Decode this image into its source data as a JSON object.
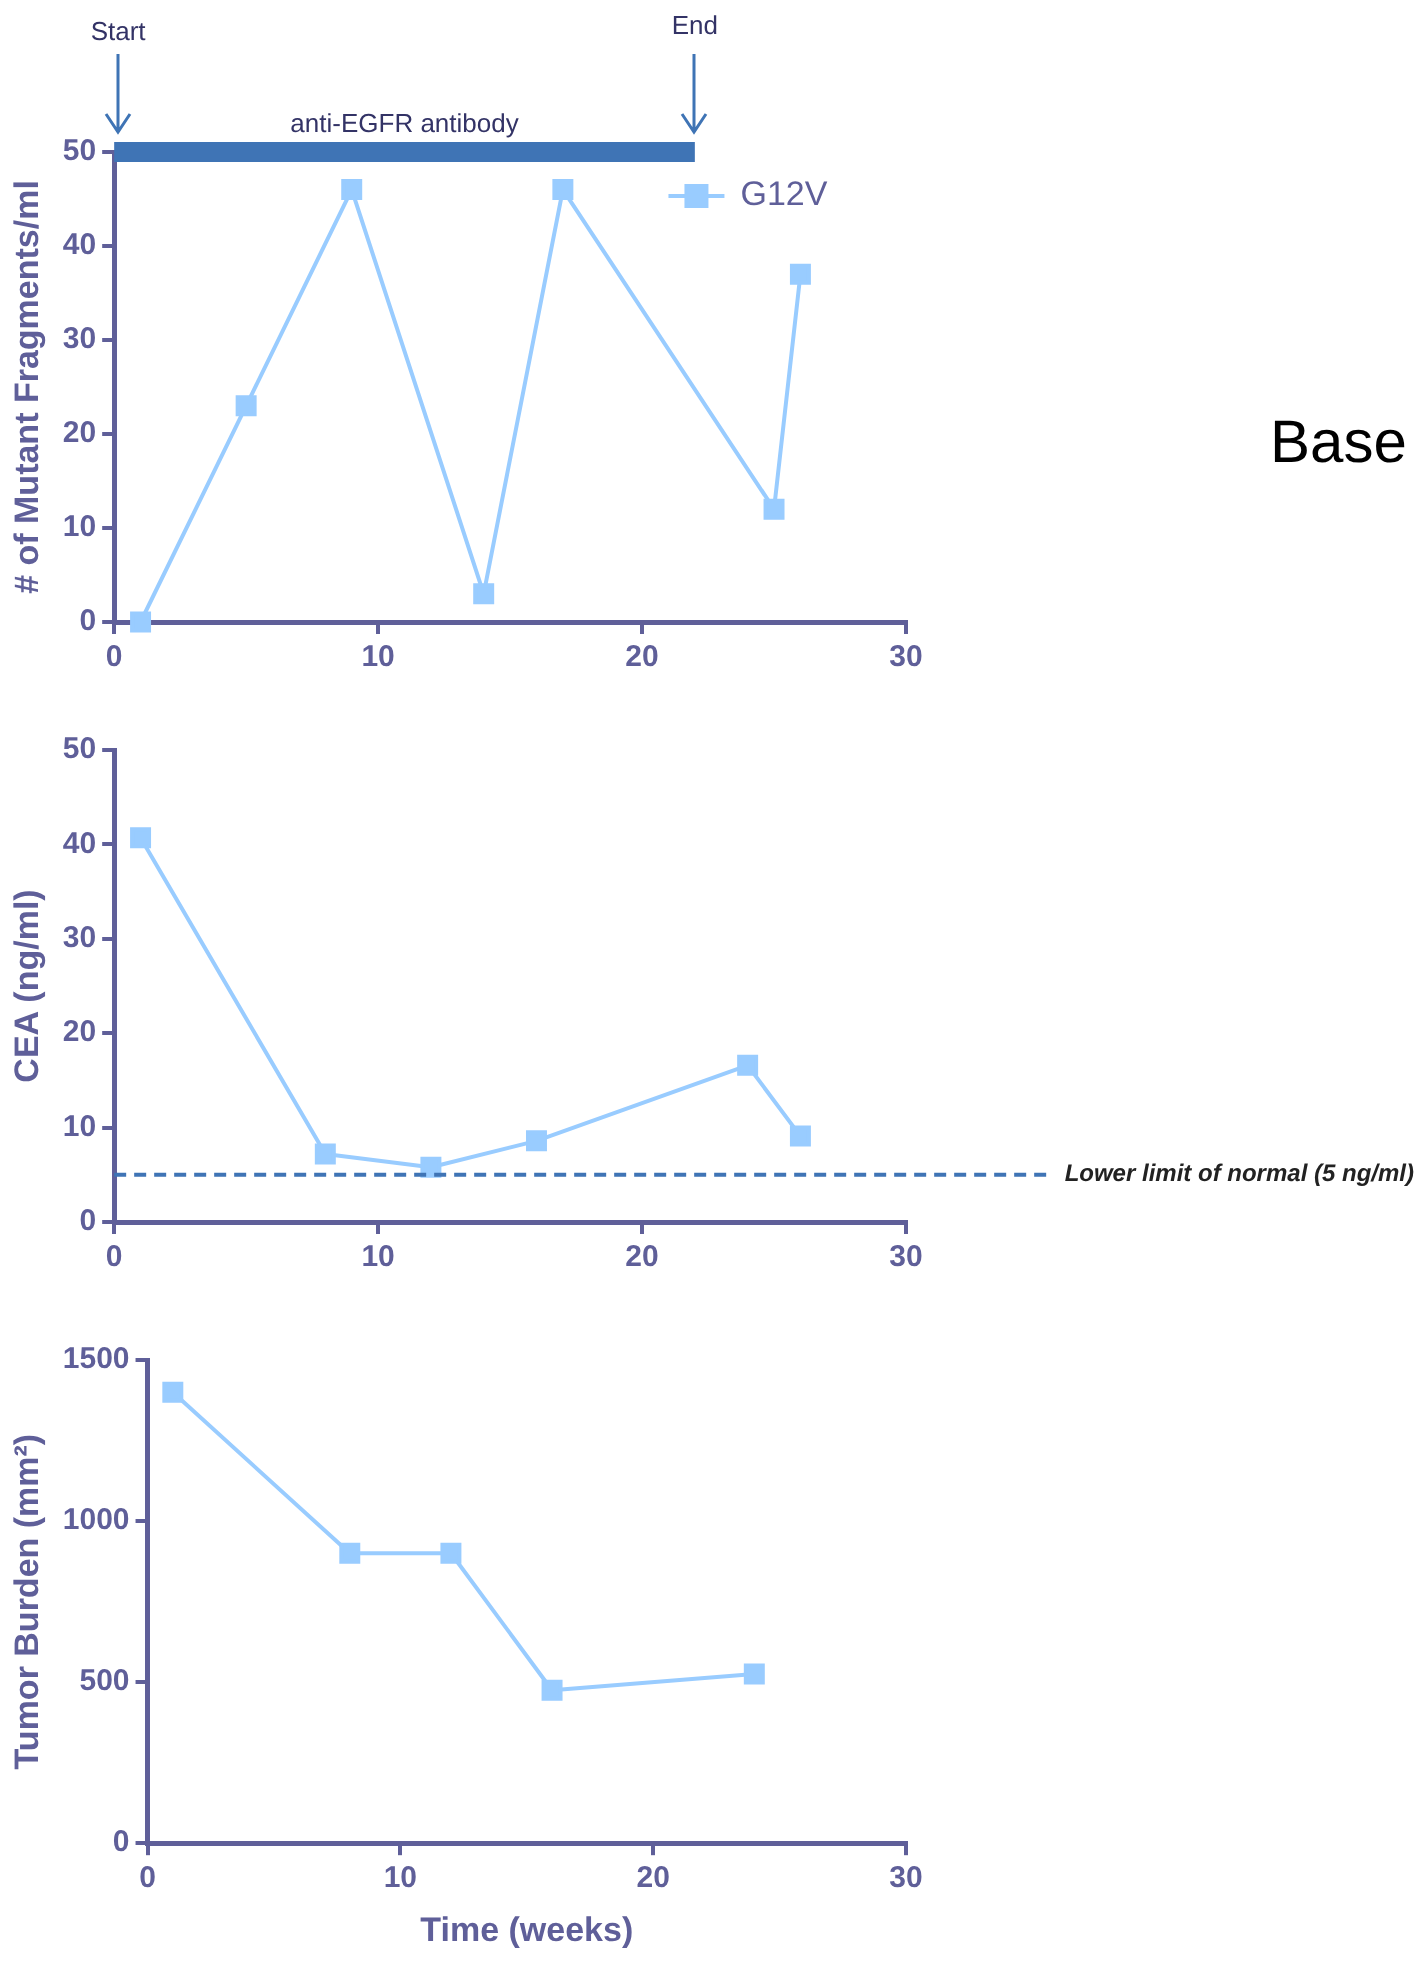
{
  "chart_data": [
    {
      "type": "line",
      "ylabel": "# of Mutant Fragments/ml",
      "x": [
        1,
        5,
        9,
        14,
        17,
        25,
        26
      ],
      "series": [
        {
          "name": "G12V",
          "color": "#99ccff",
          "values": [
            0,
            23,
            46,
            3,
            46,
            12,
            37
          ]
        },
        {
          "type": "line",
          "name": "anti-EGFR antibody",
          "color": "#3f74b5",
          "x": [
            0,
            22
          ],
          "values": [
            50,
            50
          ],
          "marker": "none"
        }
      ],
      "xlim": [
        0,
        30
      ],
      "xticks": [
        0,
        10,
        20,
        30
      ],
      "ylim": [
        0,
        50
      ],
      "yticks": [
        0,
        10,
        20,
        30,
        40,
        50
      ],
      "marker": "square",
      "legend": "top right",
      "annotations": [
        "Start",
        "End",
        "Base"
      ]
    },
    {
      "type": "line",
      "ylabel": "CEA (ng/ml)",
      "x": [
        1,
        8,
        12,
        16,
        24,
        26
      ],
      "series": [
        {
          "color": "#99ccff",
          "values": [
            40.7,
            7.2,
            5.8,
            8.6,
            16.6,
            9.1
          ]
        }
      ],
      "xlim": [
        0,
        30
      ],
      "xticks": [
        0,
        10,
        20,
        30
      ],
      "ylim": [
        0,
        50
      ],
      "yticks": [
        0,
        10,
        20,
        30,
        40,
        50
      ],
      "marker": "square",
      "ref_lines": [
        {
          "axis": "y",
          "value": 5,
          "label": "Lower limit of normal (5 ng/ml)",
          "color": "#3f74b5",
          "line_style": "dashed"
        }
      ]
    },
    {
      "type": "line",
      "xlabel": "Time (weeks)",
      "ylabel": "Tumor Burden (mm²)",
      "x": [
        1,
        8,
        12,
        16,
        24
      ],
      "series": [
        {
          "color": "#99ccff",
          "values": [
            1400,
            900,
            900,
            475,
            525
          ]
        }
      ],
      "xlim": [
        0,
        30
      ],
      "xticks": [
        0,
        10,
        20,
        30
      ],
      "ylim": [
        0,
        1500
      ],
      "yticks": [
        0,
        500,
        1000,
        1500
      ],
      "marker": "square"
    }
  ]
}
